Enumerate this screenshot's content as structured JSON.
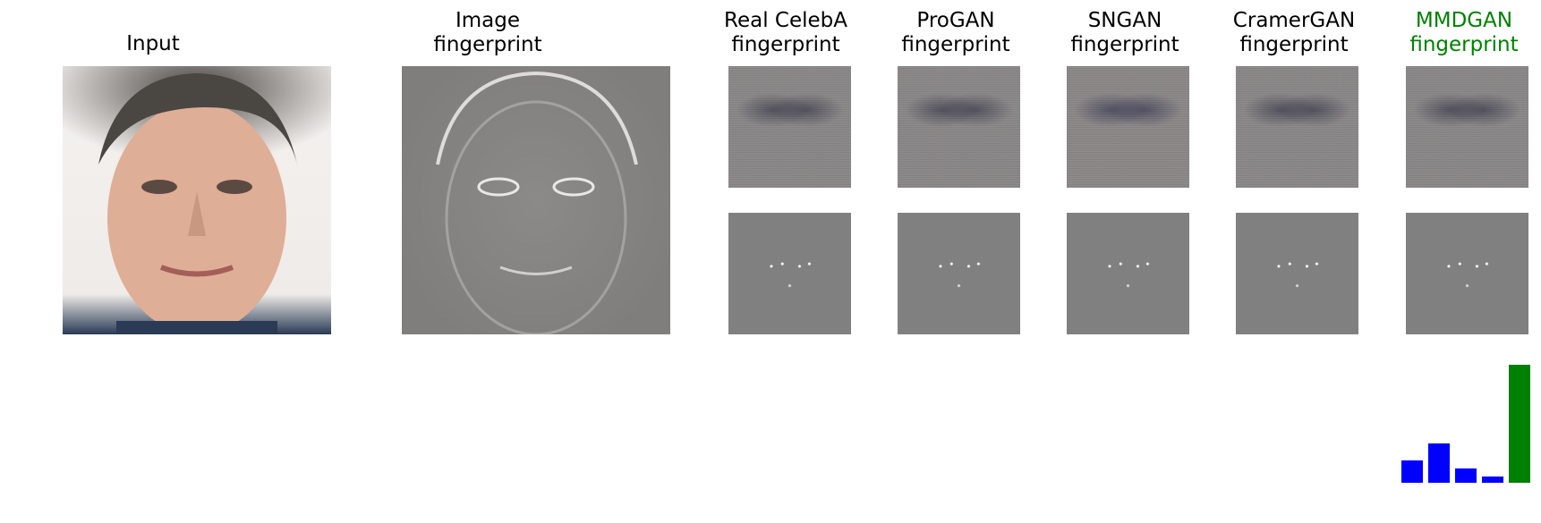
{
  "columns": {
    "input": "Input",
    "image_fp": "Image\nfingerprint",
    "real": "Real CelebA\nfingerprint",
    "progan": "ProGAN\nfingerprint",
    "sngan": "SNGAN\nfingerprint",
    "cramergan": "CramerGAN\nfingerprint",
    "mmdgan": "MMDGAN\nfingerprint"
  },
  "colors": {
    "highlight": "#008000",
    "bars": "#0000ff",
    "text": "#000000"
  },
  "chart_data": {
    "type": "bar",
    "categories": [
      "Real CelebA",
      "ProGAN",
      "SNGAN",
      "CramerGAN",
      "MMDGAN"
    ],
    "values": [
      0.19,
      0.33,
      0.12,
      0.05,
      1.0
    ],
    "colors": [
      "#0000ff",
      "#0000ff",
      "#0000ff",
      "#0000ff",
      "#008000"
    ],
    "ylim": [
      0,
      1.0
    ],
    "grid": false
  }
}
